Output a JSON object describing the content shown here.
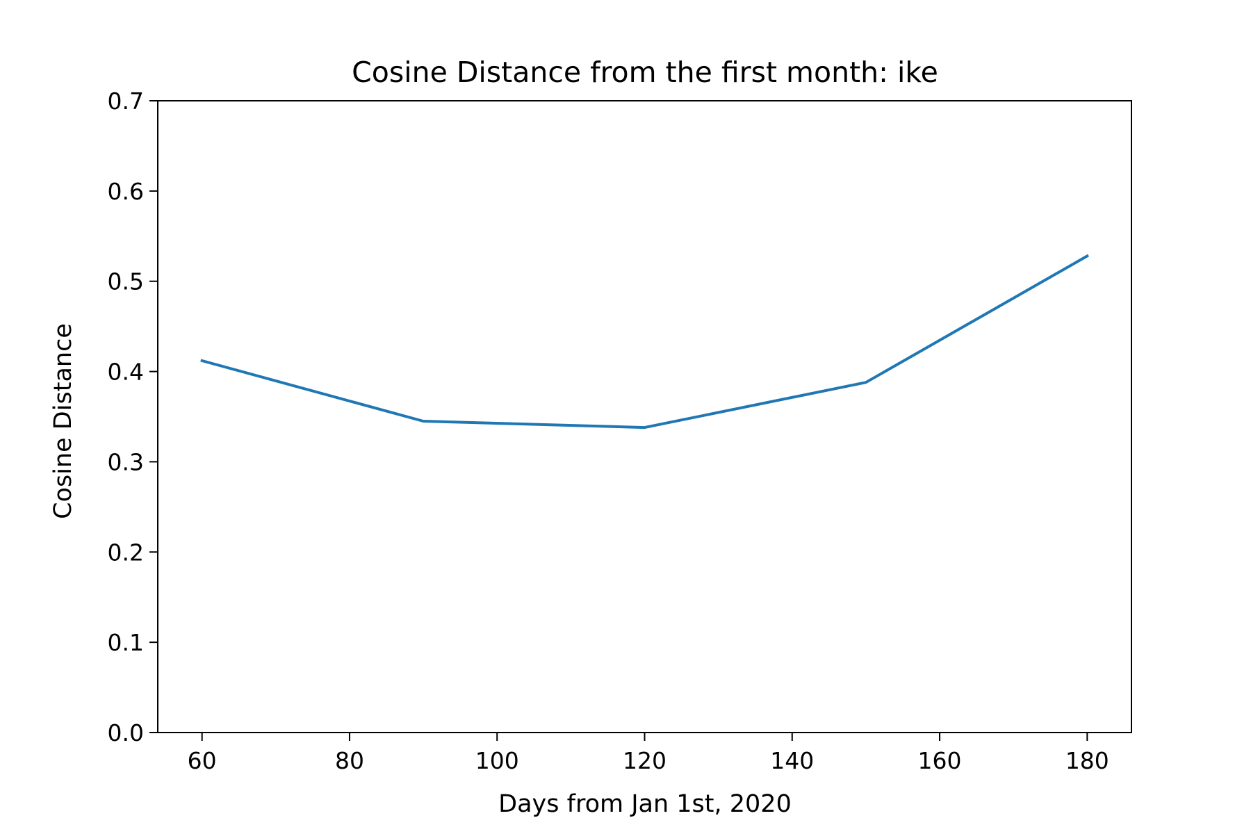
{
  "chart_data": {
    "type": "line",
    "title": "Cosine Distance from the first month: ike",
    "xlabel": "Days from Jan 1st, 2020",
    "ylabel": "Cosine Distance",
    "xlim": [
      54,
      186
    ],
    "ylim": [
      0.0,
      0.7
    ],
    "xticks": [
      60,
      80,
      100,
      120,
      140,
      160,
      180
    ],
    "yticks": [
      0.0,
      0.1,
      0.2,
      0.3,
      0.4,
      0.5,
      0.6,
      0.7
    ],
    "xtick_labels": [
      "60",
      "80",
      "100",
      "120",
      "140",
      "160",
      "180"
    ],
    "ytick_labels": [
      "0.0",
      "0.1",
      "0.2",
      "0.3",
      "0.4",
      "0.5",
      "0.6",
      "0.7"
    ],
    "grid": false,
    "series": [
      {
        "color": "#1f77b4",
        "x": [
          60,
          90,
          120,
          150,
          180
        ],
        "y": [
          0.412,
          0.345,
          0.338,
          0.388,
          0.528
        ]
      }
    ]
  }
}
